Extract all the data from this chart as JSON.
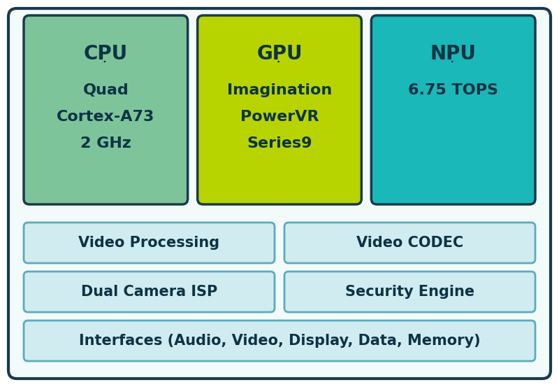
{
  "bg_color": "#ffffff",
  "outer_border_color": "#1a3a4a",
  "outer_bg_color": "#f2fafa",
  "text_color": "#0d3345",
  "cpu_color": "#7dc49a",
  "gpu_color": "#b8d400",
  "npu_color": "#1ab8b8",
  "small_box_color": "#d0ecf0",
  "small_box_border": "#5aacbc",
  "cpu_title": "CPU",
  "cpu_lines": [
    "Quad",
    "Cortex-A73",
    "2 GHz"
  ],
  "gpu_title": "GPU",
  "gpu_lines": [
    "Imagination",
    "PowerVR",
    "Series9"
  ],
  "npu_title": "NPU",
  "npu_lines": [
    "6.75 TOPS"
  ],
  "boxes_row1": [
    "Video Processing",
    "Video CODEC"
  ],
  "boxes_row2": [
    "Dual Camera ISP",
    "Security Engine"
  ],
  "boxes_row3": [
    "Interfaces (Audio, Video, Display, Data, Memory)"
  ],
  "font_size_title": 20,
  "font_size_body": 16,
  "font_size_small": 15,
  "figw": 8.0,
  "figh": 5.53,
  "dpi": 100
}
